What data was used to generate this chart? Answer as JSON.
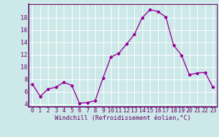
{
  "x": [
    0,
    1,
    2,
    3,
    4,
    5,
    6,
    7,
    8,
    9,
    10,
    11,
    12,
    13,
    14,
    15,
    16,
    17,
    18,
    19,
    20,
    21,
    22,
    23
  ],
  "y": [
    7.2,
    5.2,
    6.4,
    6.7,
    7.5,
    7.0,
    4.1,
    4.2,
    4.5,
    8.2,
    11.6,
    12.2,
    13.7,
    15.3,
    18.0,
    19.3,
    19.0,
    18.1,
    13.5,
    11.9,
    8.7,
    9.0,
    9.1,
    6.7
  ],
  "line_color": "#990099",
  "marker": "D",
  "marker_size": 2.0,
  "bg_color": "#cce8e8",
  "grid_color": "#ffffff",
  "xlabel": "Windchill (Refroidissement éolien,°C)",
  "xlabel_fontsize": 6.5,
  "tick_fontsize": 6.0,
  "ylim": [
    3.5,
    20.2
  ],
  "yticks": [
    4,
    6,
    8,
    10,
    12,
    14,
    16,
    18
  ],
  "xticks": [
    0,
    1,
    2,
    3,
    4,
    5,
    6,
    7,
    8,
    9,
    10,
    11,
    12,
    13,
    14,
    15,
    16,
    17,
    18,
    19,
    20,
    21,
    22,
    23
  ],
  "linewidth": 1.0
}
